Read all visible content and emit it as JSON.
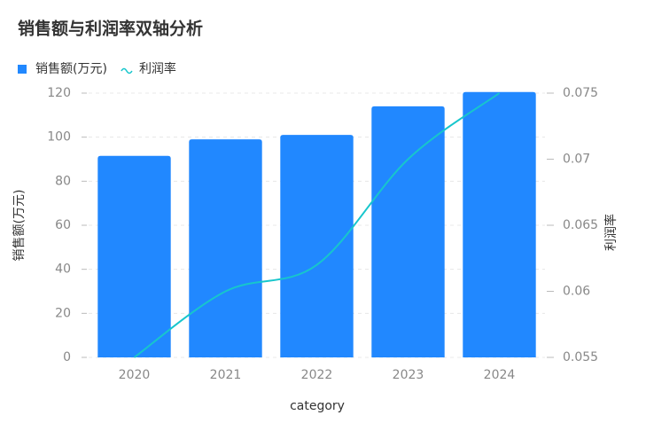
{
  "chart_data": {
    "type": "bar-line-dual",
    "title": "销售额与利润率双轴分析",
    "categories": [
      "2020",
      "2021",
      "2022",
      "2023",
      "2024"
    ],
    "x_label": "category",
    "y_label": "销售额(万元)",
    "y2_label": "利润率",
    "series": [
      {
        "name": "销售额(万元)",
        "type": "bar",
        "color": "#2188ff",
        "values": [
          91.5,
          99,
          101,
          114,
          120.5
        ]
      },
      {
        "name": "利润率",
        "type": "line",
        "axis": "y2",
        "color": "#17c6cc",
        "values": [
          0.055,
          0.06,
          0.062,
          0.07,
          0.075
        ]
      }
    ],
    "ylim": [
      0,
      120
    ],
    "yticks": [
      0,
      20,
      40,
      60,
      80,
      100,
      120
    ],
    "y2lim": [
      0.055,
      0.075
    ],
    "y2ticks": [
      0.055,
      0.06,
      0.065,
      0.07,
      0.075
    ],
    "grid": true
  }
}
